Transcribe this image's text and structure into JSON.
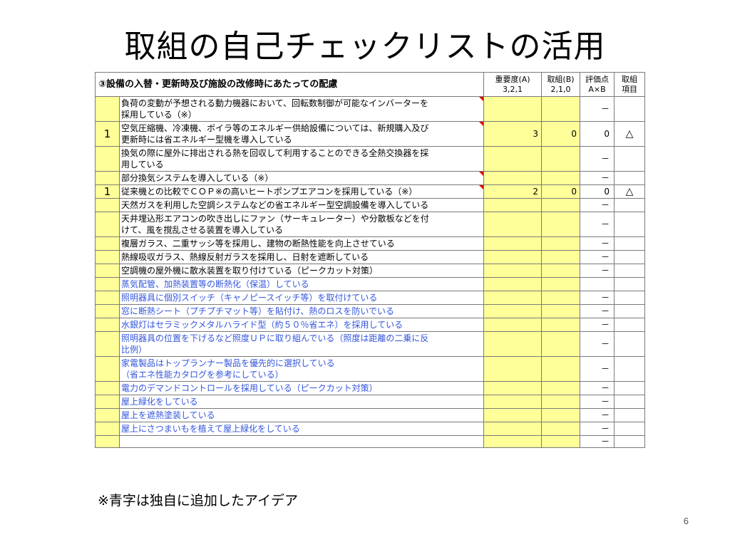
{
  "title": "取組の自己チェックリストの活用",
  "table": {
    "header": {
      "section": "③設備の入替・更新時及び施設の改修時にあたっての配慮",
      "columns": [
        {
          "line1": "重要度(A)",
          "line2": "3,2,1"
        },
        {
          "line1": "取組(B)",
          "line2": "2,1,0"
        },
        {
          "line1": "評価点",
          "line2": "A×B"
        },
        {
          "line1": "取組",
          "line2": "項目"
        }
      ]
    },
    "rows": [
      {
        "num": "",
        "lines": [
          "負荷の変動が予想される動力機器において、回転数制御が可能なインバーターを",
          "採用している（※）"
        ],
        "color": "black",
        "flag": true,
        "importance": "",
        "effort": "",
        "score": "－",
        "mark": ""
      },
      {
        "num": "1",
        "lines": [
          "空気圧縮機、冷凍機、ボイラ等のエネルギー供給設備については、新規購入及び",
          "更新時には省エネルギー型機を導入している"
        ],
        "color": "black",
        "flag": true,
        "importance": "3",
        "effort": "0",
        "score": "0",
        "mark": "△"
      },
      {
        "num": "",
        "lines": [
          "換気の際に屋外に排出される熱を回収して利用することのできる全熱交換器を採",
          "用している"
        ],
        "color": "black",
        "flag": false,
        "importance": "",
        "effort": "",
        "score": "－",
        "mark": ""
      },
      {
        "num": "",
        "lines": [
          "部分換気システムを導入している（※）"
        ],
        "color": "black",
        "flag": true,
        "importance": "",
        "effort": "",
        "score": "－",
        "mark": ""
      },
      {
        "num": "1",
        "lines": [
          "従来機との比較でＣＯＰ※の高いヒートポンプエアコンを採用している（※）"
        ],
        "color": "black",
        "flag": true,
        "importance": "2",
        "effort": "0",
        "score": "0",
        "mark": "△"
      },
      {
        "num": "",
        "lines": [
          "天然ガスを利用した空調システムなどの省エネルギー型空調設備を導入している"
        ],
        "color": "black",
        "flag": false,
        "importance": "",
        "effort": "",
        "score": "－",
        "mark": ""
      },
      {
        "num": "",
        "lines": [
          "天井埋込形エアコンの吹き出しにファン（サーキュレーター）や分散板などを付",
          "けて、風を撹乱させる装置を導入している"
        ],
        "color": "black",
        "flag": false,
        "importance": "",
        "effort": "",
        "score": "－",
        "mark": ""
      },
      {
        "num": "",
        "lines": [
          "複層ガラス、二重サッシ等を採用し、建物の断熱性能を向上させている"
        ],
        "color": "black",
        "flag": false,
        "importance": "",
        "effort": "",
        "score": "－",
        "mark": ""
      },
      {
        "num": "",
        "lines": [
          "熱線吸収ガラス、熱線反射ガラスを採用し、日射を遮断している"
        ],
        "color": "black",
        "flag": false,
        "importance": "",
        "effort": "",
        "score": "－",
        "mark": ""
      },
      {
        "num": "",
        "lines": [
          "空調機の屋外機に散水装置を取り付けている（ピークカット対策）"
        ],
        "color": "black",
        "flag": false,
        "importance": "",
        "effort": "",
        "score": "－",
        "mark": ""
      },
      {
        "num": "",
        "lines": [
          "蒸気配管、加熱装置等の断熱化（保温）している"
        ],
        "color": "blue",
        "flag": false,
        "importance": "",
        "effort": "",
        "score": "",
        "mark": ""
      },
      {
        "num": "",
        "lines": [
          "照明器具に個別スイッチ（キャノピースイッチ等）を取付けている"
        ],
        "color": "blue",
        "flag": false,
        "importance": "",
        "effort": "",
        "score": "－",
        "mark": ""
      },
      {
        "num": "",
        "lines": [
          "窓に断熱シート（プチプチマット等）を貼付け、熱のロスを防いでいる"
        ],
        "color": "blue",
        "flag": false,
        "importance": "",
        "effort": "",
        "score": "－",
        "mark": ""
      },
      {
        "num": "",
        "lines": [
          "水銀灯はセラミックメタルハライド型（約５０％省エネ）を採用している"
        ],
        "color": "blue",
        "flag": false,
        "importance": "",
        "effort": "",
        "score": "－",
        "mark": ""
      },
      {
        "num": "",
        "lines": [
          "照明器具の位置を下げるなど照度ＵＰに取り組んでいる（照度は距離の二乗に反",
          "比例）"
        ],
        "color": "blue",
        "flag": false,
        "importance": "",
        "effort": "",
        "score": "－",
        "mark": ""
      },
      {
        "num": "",
        "lines": [
          "家電製品はトップランナー製品を優先的に選択している",
          "（省エネ性能カタログを参考にしている）"
        ],
        "color": "blue",
        "flag": false,
        "importance": "",
        "effort": "",
        "score": "－",
        "mark": ""
      },
      {
        "num": "",
        "lines": [
          "電力のデマンドコントロールを採用している（ピークカット対策）"
        ],
        "color": "blue",
        "flag": false,
        "importance": "",
        "effort": "",
        "score": "－",
        "mark": ""
      },
      {
        "num": "",
        "lines": [
          "屋上緑化をしている"
        ],
        "color": "blue",
        "flag": false,
        "importance": "",
        "effort": "",
        "score": "－",
        "mark": ""
      },
      {
        "num": "",
        "lines": [
          "屋上を遮熱塗装している"
        ],
        "color": "blue",
        "flag": false,
        "importance": "",
        "effort": "",
        "score": "－",
        "mark": ""
      },
      {
        "num": "",
        "lines": [
          "屋上にさつまいもを植えて屋上緑化をしている"
        ],
        "color": "blue",
        "flag": false,
        "importance": "",
        "effort": "",
        "score": "－",
        "mark": ""
      },
      {
        "num": "",
        "lines": [
          ""
        ],
        "color": "black",
        "flag": false,
        "importance": "",
        "effort": "",
        "score": "－",
        "mark": "",
        "blank": true
      }
    ]
  },
  "footnote": "※青字は独自に追加したアイデア",
  "page_number": "6",
  "colors": {
    "highlight": "#ffff99",
    "added_idea_text": "#3355dd",
    "comment_flag": "#dd0000"
  }
}
